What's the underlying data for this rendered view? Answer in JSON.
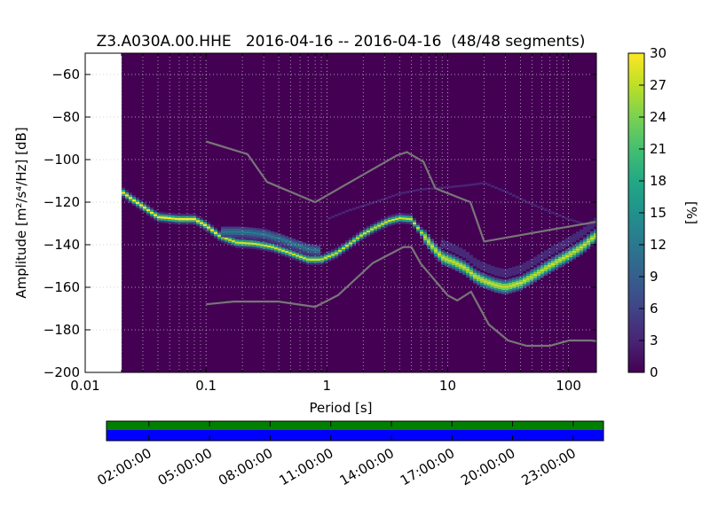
{
  "chart_data": [
    {
      "type": "heatmap",
      "title": "Z3.A030A.00.HHE   2016-04-16 -- 2016-04-16  (48/48 segments)",
      "xlabel": "Period [s]",
      "ylabel": "Amplitude [m²/s⁴/Hz] [dB]",
      "x_scale": "log",
      "xlim": [
        0.01,
        170
      ],
      "ylim": [
        -200,
        -50
      ],
      "x_ticks": [
        0.01,
        0.1,
        1,
        10,
        100
      ],
      "x_tick_labels": [
        "0.01",
        "0.1",
        "1",
        "10",
        "100"
      ],
      "y_ticks": [
        -200,
        -180,
        -160,
        -140,
        -120,
        -100,
        -80,
        -60
      ],
      "y_tick_labels": [
        "−200",
        "−180",
        "−160",
        "−140",
        "−120",
        "−100",
        "−80",
        "−60"
      ],
      "grid": true,
      "data_period_start": 0.02,
      "colorbar": {
        "label": "[%]",
        "range": [
          0,
          30
        ],
        "ticks": [
          0,
          3,
          6,
          9,
          12,
          15,
          18,
          21,
          24,
          27,
          30
        ],
        "tick_labels": [
          "0",
          "3",
          "6",
          "9",
          "12",
          "15",
          "18",
          "21",
          "24",
          "27",
          "30"
        ]
      },
      "psd_mode": {
        "name": "mode",
        "periods": [
          0.02,
          0.025,
          0.03,
          0.04,
          0.06,
          0.08,
          0.1,
          0.13,
          0.18,
          0.25,
          0.35,
          0.5,
          0.7,
          0.9,
          1.2,
          1.6,
          2.0,
          2.5,
          3.2,
          4.0,
          5.0,
          6.0,
          7.5,
          9.0,
          11,
          14,
          17,
          20,
          25,
          30,
          40,
          50,
          65,
          80,
          100,
          130,
          165
        ],
        "values": [
          -115,
          -119,
          -122,
          -127,
          -128,
          -128,
          -131,
          -136,
          -139,
          -139.5,
          -141,
          -144,
          -147,
          -147,
          -144,
          -139,
          -135,
          -132,
          -129,
          -127.5,
          -128,
          -134,
          -141,
          -146,
          -148,
          -151,
          -155,
          -157,
          -159,
          -160,
          -158,
          -155,
          -151,
          -148,
          -145,
          -141,
          -136
        ]
      },
      "psd_secondary": {
        "name": "secondary",
        "periods": [
          0.13,
          0.2,
          0.3,
          0.4,
          0.55,
          0.7,
          0.9
        ],
        "values": [
          -134,
          -134,
          -135,
          -137,
          -140,
          -142,
          -143
        ]
      },
      "psd_faint": {
        "name": "faint",
        "periods": [
          1.0,
          1.5,
          2.5,
          4,
          6,
          10,
          15,
          20,
          30,
          50,
          100,
          150
        ],
        "values": [
          -128,
          -124,
          -120,
          -116,
          -114,
          -113,
          -112,
          -111,
          -115,
          -121,
          -128,
          -131
        ]
      },
      "noise_model_high": {
        "name": "NHNM",
        "periods": [
          0.1,
          0.22,
          0.32,
          0.8,
          3.8,
          4.6,
          6.3,
          7.9,
          15.4,
          20,
          354.8
        ],
        "values": [
          -91.5,
          -97.4,
          -110.5,
          -120,
          -98,
          -96.5,
          -101,
          -113.5,
          -120,
          -138.5,
          -126
        ]
      },
      "noise_model_low": {
        "name": "NLNM",
        "periods": [
          0.1,
          0.17,
          0.4,
          0.8,
          1.24,
          2.4,
          4.3,
          5.0,
          6.0,
          10,
          12,
          15.6,
          21.9,
          31.6,
          45,
          70,
          101,
          154,
          328
        ],
        "values": [
          -168,
          -166.7,
          -166.7,
          -169.2,
          -163.7,
          -148.6,
          -141.1,
          -141.1,
          -149,
          -163.8,
          -166.2,
          -162.1,
          -177.5,
          -185,
          -187.5,
          -187.5,
          -185,
          -185,
          -187.5
        ]
      }
    },
    {
      "type": "timeline",
      "tick_labels": [
        "02:00:00",
        "05:00:00",
        "08:00:00",
        "11:00:00",
        "14:00:00",
        "17:00:00",
        "20:00:00",
        "23:00:00"
      ],
      "bars": [
        {
          "name": "available",
          "color": "#008000"
        },
        {
          "name": "used",
          "color": "#0000ff"
        }
      ]
    }
  ]
}
